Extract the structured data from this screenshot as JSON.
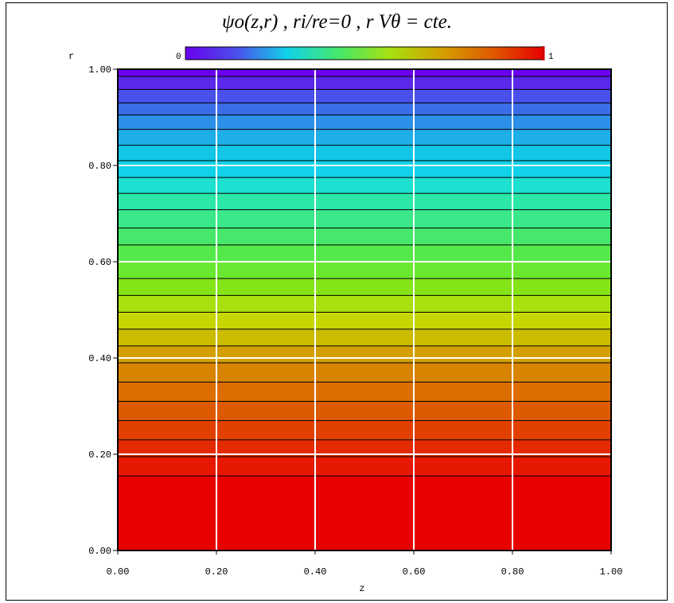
{
  "chart_data": {
    "type": "heatmap",
    "title": "ψo(z,r) , ri/re=0 , r Vθ = cte.",
    "xlabel": "z",
    "ylabel": "r",
    "xlim": [
      0,
      1
    ],
    "ylim": [
      0,
      1
    ],
    "x_ticks": [
      "0.00",
      "0.20",
      "0.40",
      "0.60",
      "0.80",
      "1.00"
    ],
    "y_ticks": [
      "0.00",
      "0.20",
      "0.40",
      "0.60",
      "0.80",
      "1.00"
    ],
    "colorbar": {
      "min_label": "0",
      "max_label": "1",
      "colormap": [
        "#6a00ee",
        "#4a50ea",
        "#11d2e8",
        "#45e86a",
        "#a8e010",
        "#d4a000",
        "#de5a00",
        "#e80000"
      ]
    },
    "grid": true,
    "field": "psi = 1 - r^2 (independent of z)",
    "bands": [
      {
        "r0": 0.985,
        "r1": 1.0,
        "color": "#6a00ee"
      },
      {
        "r0": 0.958,
        "r1": 0.985,
        "color": "#5a28ea"
      },
      {
        "r0": 0.93,
        "r1": 0.958,
        "color": "#4a50ea"
      },
      {
        "r0": 0.905,
        "r1": 0.93,
        "color": "#3a6ee8"
      },
      {
        "r0": 0.875,
        "r1": 0.905,
        "color": "#2c8fe8"
      },
      {
        "r0": 0.842,
        "r1": 0.875,
        "color": "#1eaee8"
      },
      {
        "r0": 0.81,
        "r1": 0.842,
        "color": "#11c6e6"
      },
      {
        "r0": 0.775,
        "r1": 0.81,
        "color": "#11d2e8"
      },
      {
        "r0": 0.742,
        "r1": 0.775,
        "color": "#1de0d0"
      },
      {
        "r0": 0.708,
        "r1": 0.742,
        "color": "#2ce8a8"
      },
      {
        "r0": 0.67,
        "r1": 0.708,
        "color": "#3ae88a"
      },
      {
        "r0": 0.635,
        "r1": 0.67,
        "color": "#45e86a"
      },
      {
        "r0": 0.6,
        "r1": 0.635,
        "color": "#55e84a"
      },
      {
        "r0": 0.565,
        "r1": 0.6,
        "color": "#6ae830"
      },
      {
        "r0": 0.53,
        "r1": 0.565,
        "color": "#84e418"
      },
      {
        "r0": 0.495,
        "r1": 0.53,
        "color": "#a8e010"
      },
      {
        "r0": 0.46,
        "r1": 0.495,
        "color": "#c6d600"
      },
      {
        "r0": 0.425,
        "r1": 0.46,
        "color": "#ccbc00"
      },
      {
        "r0": 0.39,
        "r1": 0.425,
        "color": "#d4a000"
      },
      {
        "r0": 0.35,
        "r1": 0.39,
        "color": "#d88400"
      },
      {
        "r0": 0.31,
        "r1": 0.35,
        "color": "#dc6e00"
      },
      {
        "r0": 0.27,
        "r1": 0.31,
        "color": "#de5a00"
      },
      {
        "r0": 0.23,
        "r1": 0.27,
        "color": "#e24000"
      },
      {
        "r0": 0.195,
        "r1": 0.23,
        "color": "#e42a00"
      },
      {
        "r0": 0.155,
        "r1": 0.195,
        "color": "#e61800"
      },
      {
        "r0": 0.0,
        "r1": 0.155,
        "color": "#e80000"
      }
    ],
    "contour_levels_r": [
      0.985,
      0.958,
      0.93,
      0.905,
      0.875,
      0.842,
      0.81,
      0.775,
      0.742,
      0.708,
      0.67,
      0.635,
      0.6,
      0.565,
      0.53,
      0.495,
      0.46,
      0.425,
      0.39,
      0.35,
      0.31,
      0.27,
      0.23,
      0.195,
      0.155
    ],
    "gridlines_x": [
      0.2,
      0.4,
      0.6,
      0.8
    ],
    "gridlines_y": [
      0.2,
      0.4,
      0.6,
      0.8
    ]
  }
}
